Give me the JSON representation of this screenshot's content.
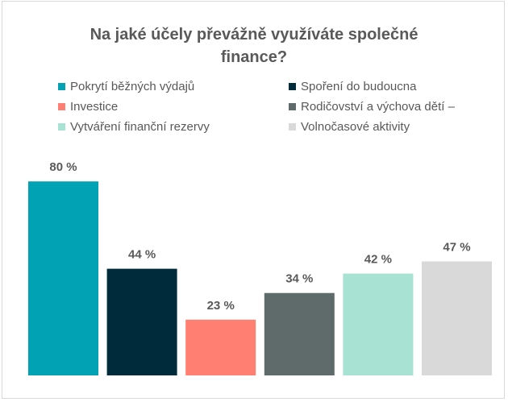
{
  "chart_data": {
    "type": "bar",
    "title": "Na jaké účely převážně využíváte společné finance?",
    "title_lines": [
      "Na jaké účely převážně využíváte společné",
      "finance?"
    ],
    "categories": [
      "Pokrytí běžných výdajů",
      "Spoření do budoucna",
      "Investice",
      "Rodičovství a výchova dětí –",
      "Vytváření finanční rezervy",
      "Volnočasové aktivity"
    ],
    "values": [
      80,
      44,
      23,
      34,
      42,
      47
    ],
    "value_labels": [
      "80 %",
      "44 %",
      "23 %",
      "34 %",
      "42 %",
      "47 %"
    ],
    "colors": [
      "#00A2B4",
      "#002B3A",
      "#FF7F72",
      "#5F6B6B",
      "#A8E2D3",
      "#D9D9D9"
    ],
    "ylim": [
      0,
      100
    ],
    "grid": false,
    "legend_position": "top"
  }
}
